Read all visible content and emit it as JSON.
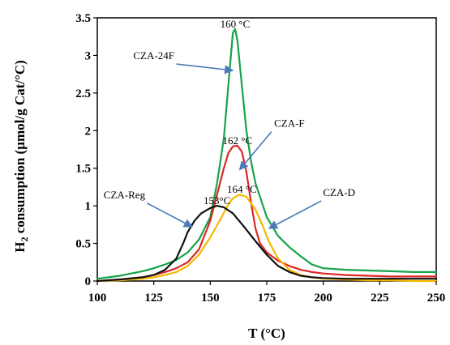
{
  "chart_data": {
    "type": "line",
    "xlabel": "T (°C)",
    "ylabel_prefix": "H",
    "ylabel_sub": "2",
    "ylabel_rest": " consumption (µmol/g Cat/°C)",
    "xlim": [
      100,
      250
    ],
    "ylim": [
      0,
      3.5
    ],
    "x_ticks": [
      "100",
      "125",
      "150",
      "175",
      "200",
      "225",
      "250"
    ],
    "y_ticks": [
      "0",
      "0.5",
      "1",
      "1.5",
      "2",
      "2.5",
      "3",
      "3.5"
    ],
    "grid": false,
    "series": [
      {
        "name": "CZA-24F",
        "color": "#16a34a",
        "points": [
          [
            100,
            0.03
          ],
          [
            105,
            0.05
          ],
          [
            110,
            0.07
          ],
          [
            115,
            0.1
          ],
          [
            120,
            0.13
          ],
          [
            125,
            0.17
          ],
          [
            130,
            0.22
          ],
          [
            135,
            0.28
          ],
          [
            140,
            0.38
          ],
          [
            145,
            0.55
          ],
          [
            150,
            0.85
          ],
          [
            153,
            1.3
          ],
          [
            156,
            1.9
          ],
          [
            158,
            2.6
          ],
          [
            160,
            3.3
          ],
          [
            161,
            3.35
          ],
          [
            162,
            3.2
          ],
          [
            164,
            2.6
          ],
          [
            166,
            2.0
          ],
          [
            168,
            1.6
          ],
          [
            170,
            1.3
          ],
          [
            175,
            0.85
          ],
          [
            180,
            0.6
          ],
          [
            185,
            0.45
          ],
          [
            190,
            0.33
          ],
          [
            195,
            0.22
          ],
          [
            200,
            0.17
          ],
          [
            210,
            0.15
          ],
          [
            220,
            0.14
          ],
          [
            230,
            0.13
          ],
          [
            240,
            0.12
          ],
          [
            250,
            0.12
          ]
        ]
      },
      {
        "name": "CZA-F",
        "color": "#dc2626",
        "points": [
          [
            100,
            0.0
          ],
          [
            110,
            0.02
          ],
          [
            120,
            0.05
          ],
          [
            125,
            0.08
          ],
          [
            130,
            0.12
          ],
          [
            135,
            0.17
          ],
          [
            140,
            0.25
          ],
          [
            145,
            0.42
          ],
          [
            150,
            0.8
          ],
          [
            153,
            1.15
          ],
          [
            156,
            1.5
          ],
          [
            158,
            1.7
          ],
          [
            160,
            1.79
          ],
          [
            162,
            1.8
          ],
          [
            164,
            1.72
          ],
          [
            166,
            1.45
          ],
          [
            168,
            1.05
          ],
          [
            170,
            0.7
          ],
          [
            172,
            0.5
          ],
          [
            175,
            0.38
          ],
          [
            180,
            0.27
          ],
          [
            185,
            0.2
          ],
          [
            190,
            0.15
          ],
          [
            195,
            0.12
          ],
          [
            200,
            0.1
          ],
          [
            210,
            0.08
          ],
          [
            220,
            0.07
          ],
          [
            230,
            0.06
          ],
          [
            240,
            0.06
          ],
          [
            250,
            0.06
          ]
        ]
      },
      {
        "name": "CZA-D",
        "color": "#f5b800",
        "points": [
          [
            100,
            0.0
          ],
          [
            110,
            0.01
          ],
          [
            120,
            0.03
          ],
          [
            125,
            0.05
          ],
          [
            130,
            0.08
          ],
          [
            135,
            0.12
          ],
          [
            140,
            0.2
          ],
          [
            145,
            0.35
          ],
          [
            150,
            0.58
          ],
          [
            155,
            0.85
          ],
          [
            158,
            1.02
          ],
          [
            160,
            1.1
          ],
          [
            163,
            1.15
          ],
          [
            166,
            1.12
          ],
          [
            170,
            0.95
          ],
          [
            173,
            0.75
          ],
          [
            176,
            0.52
          ],
          [
            180,
            0.3
          ],
          [
            185,
            0.15
          ],
          [
            190,
            0.08
          ],
          [
            195,
            0.05
          ],
          [
            200,
            0.03
          ],
          [
            210,
            0.02
          ],
          [
            220,
            0.01
          ],
          [
            230,
            0.01
          ],
          [
            240,
            0.0
          ],
          [
            250,
            0.0
          ]
        ]
      },
      {
        "name": "CZA-Reg",
        "color": "#111111",
        "points": [
          [
            100,
            0.0
          ],
          [
            110,
            0.02
          ],
          [
            120,
            0.05
          ],
          [
            125,
            0.08
          ],
          [
            130,
            0.15
          ],
          [
            135,
            0.3
          ],
          [
            138,
            0.5
          ],
          [
            140,
            0.65
          ],
          [
            143,
            0.8
          ],
          [
            146,
            0.9
          ],
          [
            150,
            0.97
          ],
          [
            153,
            1.0
          ],
          [
            156,
            0.98
          ],
          [
            160,
            0.9
          ],
          [
            165,
            0.72
          ],
          [
            170,
            0.53
          ],
          [
            175,
            0.35
          ],
          [
            180,
            0.2
          ],
          [
            185,
            0.12
          ],
          [
            190,
            0.07
          ],
          [
            195,
            0.05
          ],
          [
            200,
            0.04
          ],
          [
            210,
            0.03
          ],
          [
            220,
            0.03
          ],
          [
            230,
            0.03
          ],
          [
            240,
            0.03
          ],
          [
            250,
            0.03
          ]
        ]
      }
    ],
    "peak_labels": [
      {
        "text": "160 °C",
        "x": 161,
        "y": 3.35
      },
      {
        "text": "162 °C",
        "x": 162,
        "y": 1.8
      },
      {
        "text": "164 °C",
        "x": 164,
        "y": 1.15
      },
      {
        "text": "153°C",
        "x": 153,
        "y": 1.0
      }
    ],
    "series_labels": [
      {
        "text": "CZA-24F",
        "x": 125,
        "y": 2.95,
        "arrow_to": [
          160,
          2.8
        ]
      },
      {
        "text": "CZA-F",
        "x": 185,
        "y": 2.05,
        "arrow_to": [
          163,
          1.48
        ]
      },
      {
        "text": "CZA-D",
        "x": 207,
        "y": 1.13,
        "arrow_to": [
          176,
          0.7
        ]
      },
      {
        "text": "CZA-Reg",
        "x": 112,
        "y": 1.1,
        "arrow_to": [
          142,
          0.72
        ]
      }
    ]
  }
}
